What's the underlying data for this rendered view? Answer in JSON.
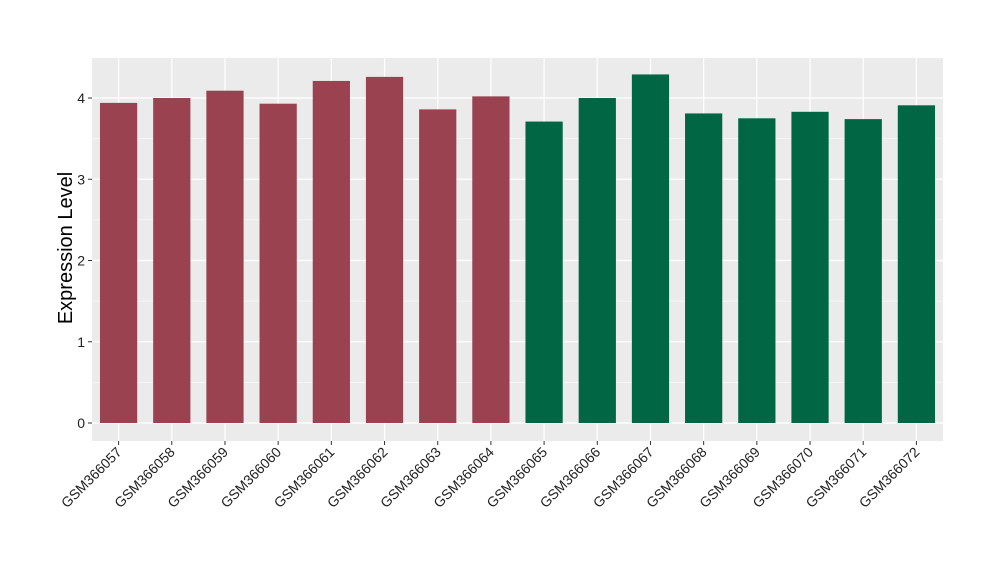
{
  "chart_data": {
    "type": "bar",
    "ylabel": "Expression Level",
    "xlabel": "",
    "ylim": [
      -0.2,
      4.5
    ],
    "yticks": [
      0,
      1,
      2,
      3,
      4
    ],
    "grid": true,
    "legend": "none",
    "colors": {
      "group1": "#9A4250",
      "group2": "#006644",
      "panel": "#EBEBEB",
      "gridline": "#FFFFFF"
    },
    "categories": [
      "GSM366057",
      "GSM366058",
      "GSM366059",
      "GSM366060",
      "GSM366061",
      "GSM366062",
      "GSM366063",
      "GSM366064",
      "GSM366065",
      "GSM366066",
      "GSM366067",
      "GSM366068",
      "GSM366069",
      "GSM366070",
      "GSM366071",
      "GSM366072"
    ],
    "values": [
      3.94,
      4.0,
      4.09,
      3.93,
      4.21,
      4.26,
      3.86,
      4.02,
      3.71,
      4.0,
      4.29,
      3.81,
      3.75,
      3.83,
      3.74,
      3.91
    ],
    "groups": [
      "group1",
      "group1",
      "group1",
      "group1",
      "group1",
      "group1",
      "group1",
      "group1",
      "group2",
      "group2",
      "group2",
      "group2",
      "group2",
      "group2",
      "group2",
      "group2"
    ]
  }
}
